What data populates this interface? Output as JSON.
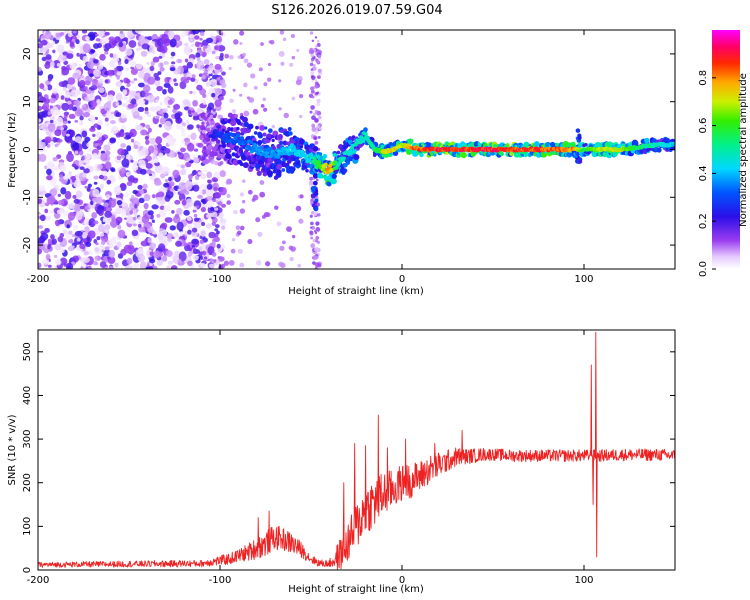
{
  "figure_title": "S126.2026.019.07.59.G04",
  "colors": {
    "snr_line": "#ee2222",
    "ridge_core": "#e8242b",
    "scatter_purple": "#7a22e0",
    "scatter_light": "#d9b8f4"
  },
  "chart_data": [
    {
      "type": "heatmap",
      "title": "",
      "xlabel": "Height of straight line (km)",
      "ylabel": "Frequency (Hz)",
      "xlim": [
        -200,
        150
      ],
      "ylim": [
        -25,
        25
      ],
      "x_ticks": [
        -200,
        -100,
        0,
        100
      ],
      "x_tick_labels": [
        "-200",
        "-100",
        "0",
        "100"
      ],
      "y_ticks": [
        -20,
        -10,
        0,
        10,
        20
      ],
      "y_tick_labels": [
        "-20",
        "-10",
        "0",
        "10",
        "20"
      ],
      "colorbar": {
        "label": "Normalized spectral amplitude",
        "range": [
          0,
          1
        ],
        "ticks": [
          0.0,
          0.2,
          0.4,
          0.6,
          0.8
        ],
        "tick_labels": [
          "0.0",
          "0.2",
          "0.4",
          "0.6",
          "0.8"
        ],
        "colormap": "rainbow (white-lavender at 0, purple, blue, cyan, green, yellow, red, magenta at 1)"
      },
      "ridge": {
        "x": [
          -110,
          -100,
          -90,
          -80,
          -70,
          -60,
          -50,
          -40,
          -35,
          -30,
          -25,
          -20,
          -15,
          -10,
          -5,
          0,
          5,
          10,
          20,
          40,
          60,
          80,
          95,
          100,
          110,
          120,
          130,
          140,
          150
        ],
        "y": [
          3,
          3,
          2,
          0,
          -1,
          0,
          -2,
          -4.5,
          -3,
          -1,
          1,
          3,
          0,
          -0.5,
          0,
          1,
          0.5,
          0,
          0,
          0,
          0,
          0,
          0,
          0,
          0,
          0,
          0.5,
          1,
          1
        ],
        "amp": [
          0.2,
          0.3,
          0.35,
          0.4,
          0.4,
          0.45,
          0.5,
          0.85,
          0.55,
          0.5,
          0.5,
          0.5,
          0.55,
          0.75,
          0.8,
          0.75,
          0.85,
          0.9,
          0.95,
          0.95,
          0.95,
          0.9,
          0.85,
          0.6,
          0.75,
          0.75,
          0.6,
          0.5,
          0.45
        ]
      },
      "noise_region": {
        "x_range": [
          -200,
          -110
        ],
        "y_range": [
          -25,
          25
        ],
        "amplitude_range": [
          0.0,
          0.2
        ],
        "extra_stripe_x": [
          -50,
          -45
        ]
      },
      "spikes": [
        {
          "x": -48,
          "y_range": [
            -13,
            -5
          ]
        },
        {
          "x": 97,
          "y_range": [
            -4,
            4
          ]
        }
      ]
    },
    {
      "type": "line",
      "title": "",
      "xlabel": "Height of straight line (km)",
      "ylabel": "SNR (10 * v/v)",
      "xlim": [
        -200,
        150
      ],
      "ylim": [
        0,
        550
      ],
      "x_ticks": [
        -200,
        -100,
        0,
        100
      ],
      "x_tick_labels": [
        "-200",
        "-100",
        "0",
        "100"
      ],
      "y_ticks": [
        0,
        100,
        200,
        300,
        400,
        500
      ],
      "y_tick_labels": [
        "0",
        "100",
        "200",
        "300",
        "400",
        "500"
      ],
      "series": [
        {
          "name": "SNR",
          "baseline": {
            "x": [
              -200,
              -110,
              -95,
              -85,
              -75,
              -70,
              -65,
              -60,
              -55,
              -50,
              -45,
              -40,
              -35,
              -30,
              -25,
              -20,
              -15,
              -10,
              -5,
              0,
              5,
              10,
              15,
              20,
              25,
              30,
              35,
              40,
              45,
              50,
              60,
              70,
              80,
              90,
              100,
              103,
              106,
              110,
              120,
              130,
              140,
              150
            ],
            "y": [
              12,
              15,
              25,
              40,
              60,
              75,
              70,
              60,
              45,
              25,
              15,
              15,
              30,
              60,
              100,
              140,
              155,
              175,
              185,
              200,
              205,
              215,
              230,
              240,
              250,
              260,
              260,
              262,
              265,
              265,
              262,
              262,
              262,
              262,
              262,
              262,
              262,
              262,
              264,
              264,
              264,
              262
            ]
          },
          "noise_amplitude": {
            "x": [
              -200,
              -110,
              -90,
              -75,
              -60,
              -50,
              -40,
              -35,
              -25,
              -15,
              -5,
              5,
              20,
              35,
              50,
              150
            ],
            "y": [
              6,
              8,
              15,
              30,
              25,
              10,
              8,
              35,
              55,
              60,
              45,
              40,
              30,
              18,
              14,
              14
            ]
          },
          "spikes": [
            {
              "x": -79,
              "y": 120
            },
            {
              "x": -73,
              "y": 135
            },
            {
              "x": -32,
              "y": 200
            },
            {
              "x": -26,
              "y": 290
            },
            {
              "x": -20,
              "y": 285
            },
            {
              "x": -13,
              "y": 355
            },
            {
              "x": -8,
              "y": 280
            },
            {
              "x": 2,
              "y": 300
            },
            {
              "x": 18,
              "y": 290
            },
            {
              "x": 33,
              "y": 320
            },
            {
              "x": 104,
              "y": 470
            },
            {
              "x": 105,
              "y": 150
            },
            {
              "x": 106.5,
              "y": 545
            },
            {
              "x": 107,
              "y": 30
            }
          ]
        }
      ]
    }
  ]
}
